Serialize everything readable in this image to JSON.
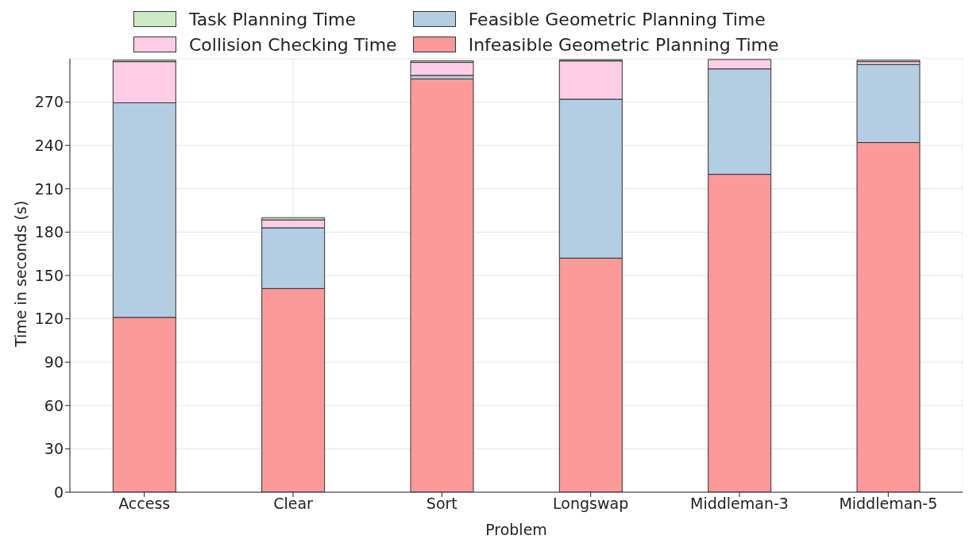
{
  "chart_data": {
    "type": "bar",
    "stacked": true,
    "xlabel": "Problem",
    "ylabel": "Time in seconds (s)",
    "categories": [
      "Access",
      "Clear",
      "Sort",
      "Longswap",
      "Middleman-3",
      "Middleman-5"
    ],
    "series": [
      {
        "name": "Infeasible Geometric Planning Time",
        "color": "#fb9a99",
        "values": [
          121,
          141,
          286,
          162,
          220,
          242
        ]
      },
      {
        "name": "Feasible Geometric Planning Time",
        "color": "#b3cde3",
        "values": [
          148.5,
          42,
          2.5,
          110,
          73,
          54
        ]
      },
      {
        "name": "Collision Checking Time",
        "color": "#fccde5",
        "values": [
          28.5,
          5.5,
          9,
          26.5,
          6.5,
          2
        ]
      },
      {
        "name": "Task Planning Time",
        "color": "#ccebc5",
        "values": [
          1,
          1.5,
          1,
          0.8,
          null,
          1
        ]
      }
    ],
    "ylim": [
      0,
      300
    ],
    "yticks": [
      0,
      30,
      60,
      90,
      120,
      150,
      180,
      210,
      240,
      270
    ],
    "grid": true,
    "legend": "top"
  }
}
